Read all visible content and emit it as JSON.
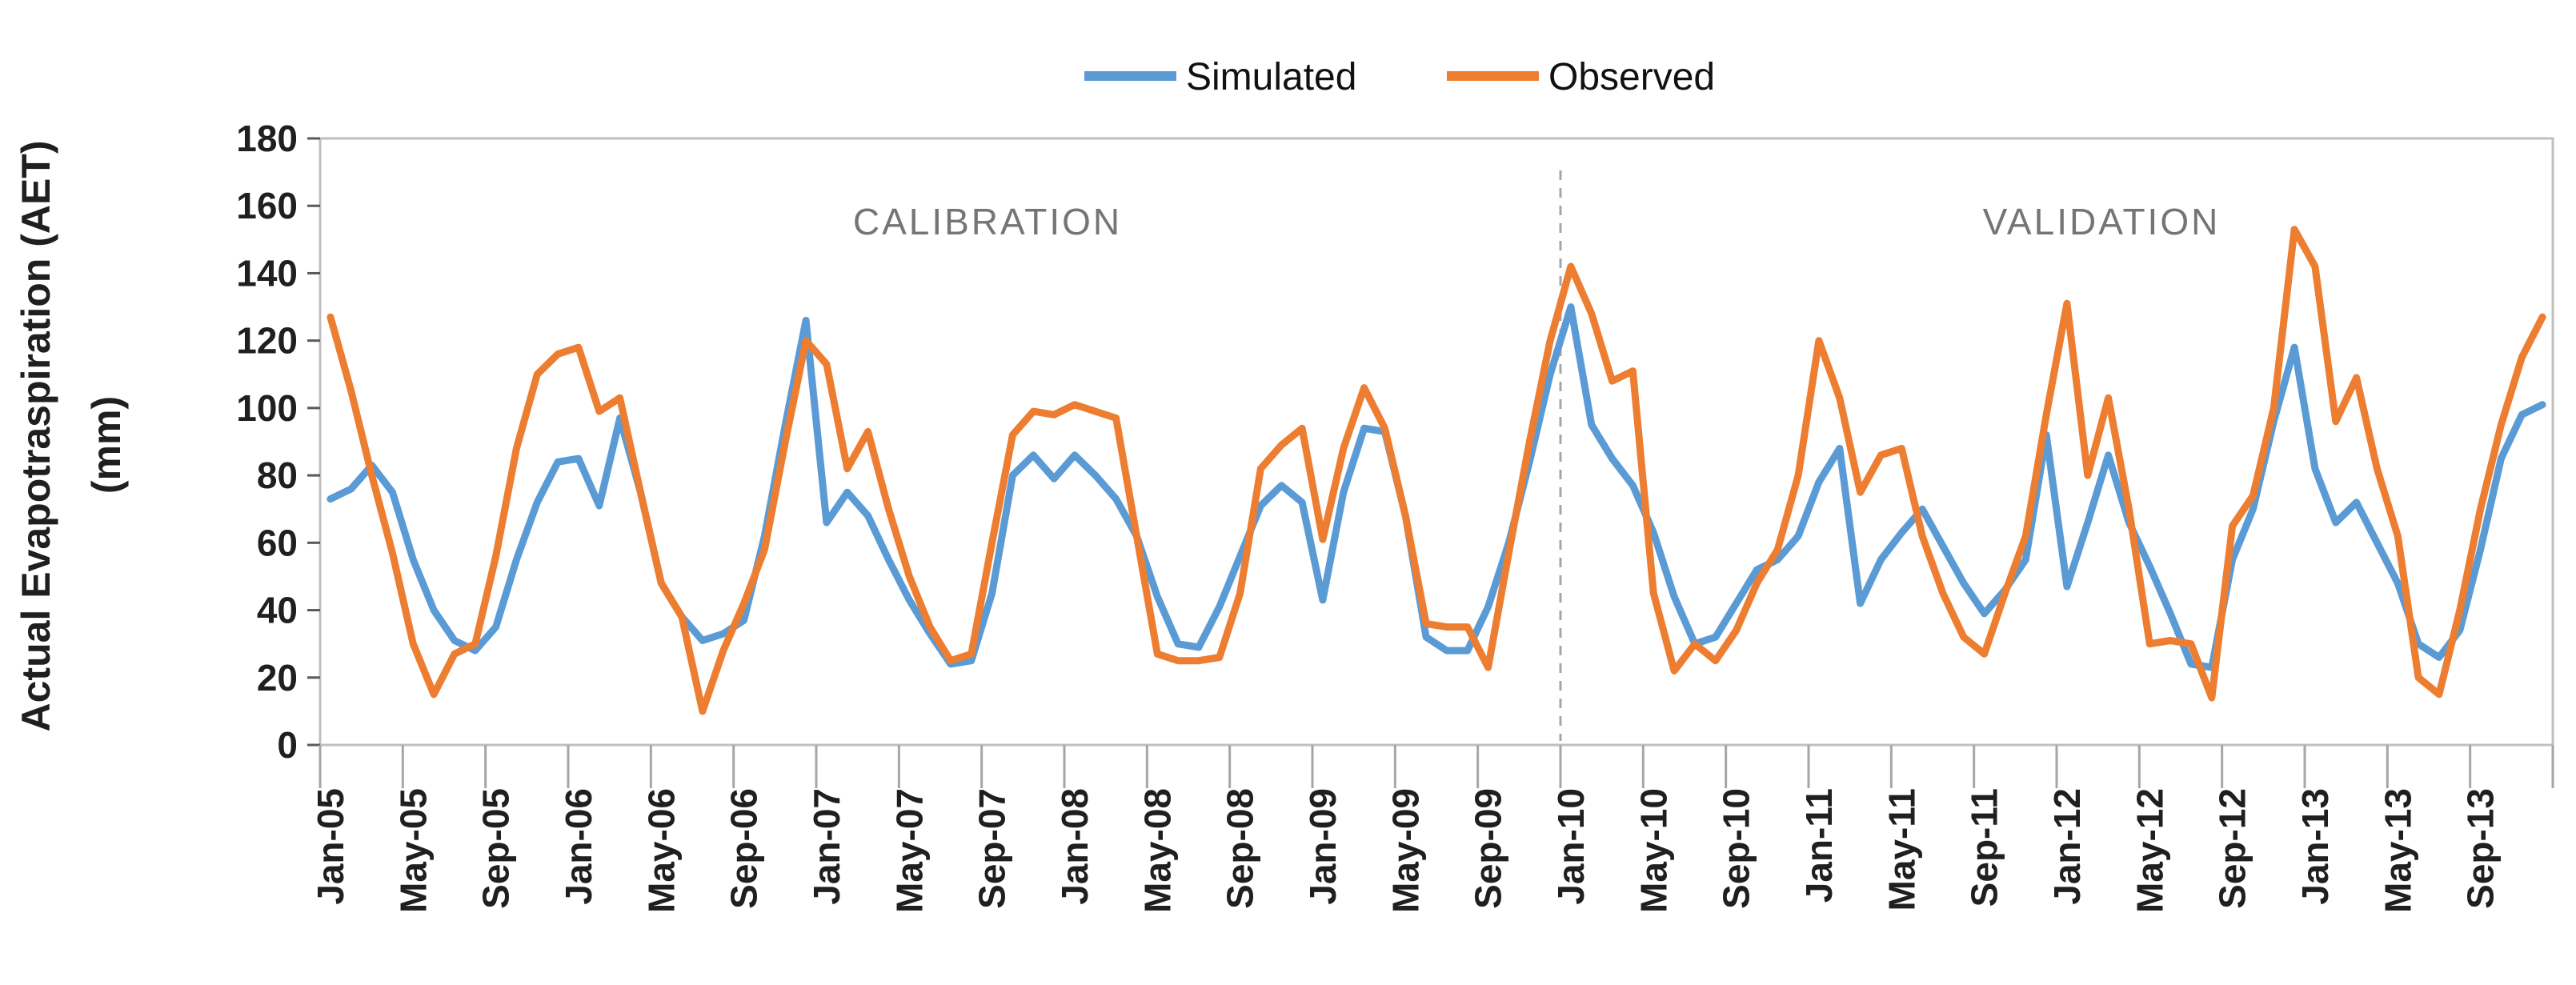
{
  "legend": {
    "simulated_label": "Simulated",
    "observed_label": "Observed"
  },
  "chart_data": {
    "type": "line",
    "title": "",
    "ylabel_line1": "Actual Evapotraspiration (AET)",
    "ylabel_line2": "(mm)",
    "ylim": [
      0,
      180
    ],
    "ytick_step": 20,
    "yticks": [
      0,
      20,
      40,
      60,
      80,
      100,
      120,
      140,
      160,
      180
    ],
    "grid": false,
    "legend_position": "top-center",
    "x_start": "Jan-05",
    "x_end": "Dec-13",
    "x_interval": "monthly",
    "xtick_labels": [
      "Jan-05",
      "May-05",
      "Sep-05",
      "Jan-06",
      "May-06",
      "Sep-06",
      "Jan-07",
      "May-07",
      "Sep-07",
      "Jan-08",
      "May-08",
      "Sep-08",
      "Jan-09",
      "May-09",
      "Sep-09",
      "Jan-10",
      "May-10",
      "Sep-10",
      "Jan-11",
      "May-11",
      "Sep-11",
      "Jan-12",
      "May-12",
      "Sep-12",
      "Jan-13",
      "May-13",
      "Sep-13"
    ],
    "annotations": [
      {
        "text": "CALIBRATION",
        "color": "#757575"
      },
      {
        "text": "VALIDATION",
        "color": "#757575"
      }
    ],
    "divider": {
      "style": "dashed",
      "color": "#A6A6A6",
      "position_label": "Jan-10"
    },
    "series": [
      {
        "name": "Simulated",
        "color": "#5B9BD5",
        "values": [
          73,
          76,
          83,
          75,
          55,
          40,
          31,
          28,
          35,
          55,
          72,
          84,
          85,
          71,
          97,
          75,
          48,
          38,
          31,
          33,
          37,
          62,
          95,
          126,
          66,
          75,
          68,
          55,
          43,
          33,
          24,
          25,
          45,
          80,
          86,
          79,
          86,
          80,
          73,
          62,
          44,
          30,
          29,
          41,
          56,
          71,
          77,
          72,
          43,
          75,
          94,
          93,
          68,
          32,
          28,
          28,
          41,
          60,
          84,
          110,
          130,
          95,
          85,
          77,
          63,
          44,
          30,
          32,
          42,
          52,
          55,
          62,
          78,
          88,
          42,
          55,
          63,
          70,
          59,
          48,
          39,
          46,
          55,
          92,
          47,
          66,
          86,
          66,
          53,
          39,
          24,
          23,
          55,
          70,
          96,
          118,
          82,
          66,
          72,
          60,
          48,
          30,
          26,
          34,
          58,
          85,
          98,
          101
        ]
      },
      {
        "name": "Observed",
        "color": "#ED7D31",
        "values": [
          127,
          105,
          80,
          57,
          30,
          15,
          27,
          30,
          56,
          88,
          110,
          116,
          118,
          99,
          103,
          75,
          48,
          38,
          10,
          28,
          42,
          58,
          90,
          120,
          113,
          82,
          93,
          70,
          50,
          35,
          25,
          27,
          60,
          92,
          99,
          98,
          101,
          99,
          97,
          62,
          27,
          25,
          25,
          26,
          45,
          82,
          89,
          94,
          61,
          88,
          106,
          94,
          68,
          36,
          35,
          35,
          23,
          57,
          90,
          120,
          142,
          128,
          108,
          111,
          45,
          22,
          30,
          25,
          34,
          48,
          58,
          80,
          120,
          103,
          75,
          86,
          88,
          62,
          45,
          32,
          27,
          45,
          62,
          98,
          131,
          80,
          103,
          70,
          30,
          31,
          30,
          14,
          65,
          74,
          100,
          153,
          142,
          96,
          109,
          82,
          62,
          20,
          15,
          40,
          70,
          95,
          115,
          127
        ]
      }
    ]
  }
}
